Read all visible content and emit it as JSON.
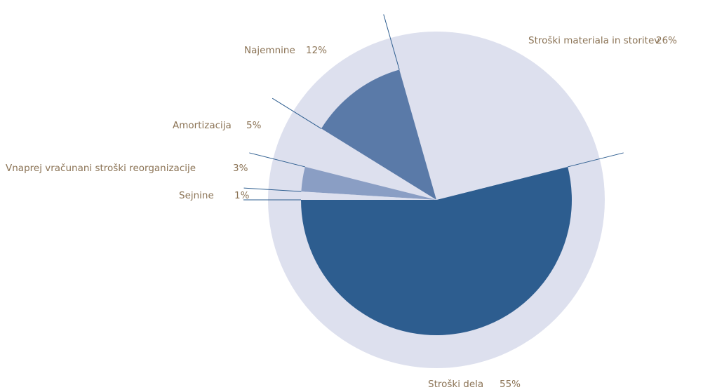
{
  "chart_data": {
    "type": "pie",
    "categories": [
      "Stroški dela",
      "Stroški materiala in storitev",
      "Najemnine",
      "Amortizacija",
      "Vnaprej vračunani stroški reorganizacije",
      "Sejnine"
    ],
    "values": [
      55,
      26,
      12,
      5,
      3,
      1
    ],
    "value_labels": [
      "55%",
      "26%",
      "12%",
      "5%",
      "3%",
      "1%"
    ],
    "colors": [
      "#2d5d8f",
      "#dde0ee",
      "#5a7aa8",
      "#dde0ee",
      "#8a9ec4",
      "#dde0ee"
    ]
  }
}
